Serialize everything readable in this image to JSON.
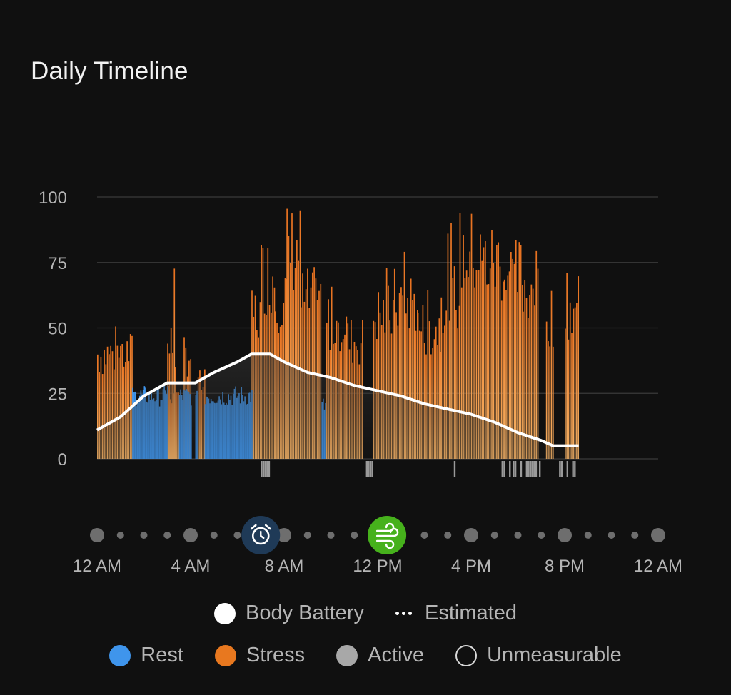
{
  "title": "Daily Timeline",
  "colors": {
    "rest": "#3f95ec",
    "stress_top": "#e8711f",
    "stress_bottom": "#f6b366",
    "active": "#9a9a9a",
    "battery": "#ffffff",
    "grid": "#3a3a3a",
    "background": "#101010"
  },
  "chart_data": {
    "type": "bar",
    "x_unit": "hours since 12 AM",
    "xlim": [
      0,
      24
    ],
    "ylim": [
      0,
      100
    ],
    "y_ticks": [
      0,
      25,
      50,
      75,
      100
    ],
    "x_tick_labels": [
      "12 AM",
      "4 AM",
      "8 AM",
      "12 PM",
      "4 PM",
      "8 PM",
      "12 AM"
    ],
    "series": [
      {
        "name": "Rest",
        "segments": [
          {
            "start": 1.5,
            "end": 2.9,
            "level": 24
          },
          {
            "start": 2.9,
            "end": 3.0,
            "level": 26
          },
          {
            "start": 3.5,
            "end": 4.0,
            "level": 24
          },
          {
            "start": 4.2,
            "end": 4.3,
            "level": 22
          },
          {
            "start": 4.6,
            "end": 6.6,
            "level": 24
          },
          {
            "start": 9.6,
            "end": 9.8,
            "level": 20
          }
        ]
      },
      {
        "name": "Stress",
        "segments": [
          {
            "start": 0.0,
            "end": 1.5,
            "level": 40
          },
          {
            "start": 2.9,
            "end": 3.5,
            "level": 26
          },
          {
            "start": 3.0,
            "end": 3.3,
            "level": 45
          },
          {
            "start": 3.7,
            "end": 4.0,
            "level": 40
          },
          {
            "start": 4.3,
            "end": 4.6,
            "level": 28
          },
          {
            "start": 6.6,
            "end": 7.0,
            "level": 55
          },
          {
            "start": 7.0,
            "end": 7.6,
            "level": 70
          },
          {
            "start": 7.6,
            "end": 8.1,
            "level": 62
          },
          {
            "start": 8.1,
            "end": 8.7,
            "level": 80
          },
          {
            "start": 8.7,
            "end": 9.6,
            "level": 60
          },
          {
            "start": 9.8,
            "end": 10.7,
            "level": 52
          },
          {
            "start": 10.7,
            "end": 11.4,
            "level": 45
          },
          {
            "start": 11.8,
            "end": 12.7,
            "level": 55
          },
          {
            "start": 12.7,
            "end": 13.7,
            "level": 60
          },
          {
            "start": 13.7,
            "end": 14.7,
            "level": 50
          },
          {
            "start": 14.7,
            "end": 15.5,
            "level": 62
          },
          {
            "start": 15.5,
            "end": 16.3,
            "level": 78
          },
          {
            "start": 16.3,
            "end": 17.4,
            "level": 75
          },
          {
            "start": 17.4,
            "end": 18.2,
            "level": 70
          },
          {
            "start": 18.2,
            "end": 18.9,
            "level": 66
          },
          {
            "start": 19.2,
            "end": 19.5,
            "level": 55
          },
          {
            "start": 20.0,
            "end": 20.6,
            "level": 58
          }
        ]
      },
      {
        "name": "Active",
        "segments": [
          {
            "start": 7.0,
            "end": 7.4,
            "level": 6
          },
          {
            "start": 11.5,
            "end": 11.8,
            "level": 6
          },
          {
            "start": 15.1,
            "end": 15.3,
            "level": 6
          },
          {
            "start": 17.3,
            "end": 18.9,
            "level": 6
          },
          {
            "start": 19.6,
            "end": 20.4,
            "level": 6
          }
        ]
      },
      {
        "name": "Body Battery",
        "points": [
          [
            0.0,
            11
          ],
          [
            1.0,
            16
          ],
          [
            2.0,
            24
          ],
          [
            3.0,
            29
          ],
          [
            4.2,
            29
          ],
          [
            5.0,
            33
          ],
          [
            6.0,
            37
          ],
          [
            6.6,
            40
          ],
          [
            7.4,
            40
          ],
          [
            8.0,
            37
          ],
          [
            9.0,
            33
          ],
          [
            10.0,
            31
          ],
          [
            11.0,
            28
          ],
          [
            12.0,
            26
          ],
          [
            13.0,
            24
          ],
          [
            14.0,
            21
          ],
          [
            15.0,
            19
          ],
          [
            16.0,
            17
          ],
          [
            17.0,
            14
          ],
          [
            18.0,
            10
          ],
          [
            19.0,
            7
          ],
          [
            19.5,
            5
          ],
          [
            20.6,
            5
          ]
        ]
      }
    ],
    "legend_placement": "bottom"
  },
  "timeline": {
    "alarm_icon": "alarm-clock-icon",
    "alarm_time": 7.0,
    "breathing_icon": "wind-icon",
    "breathing_time": 12.4
  },
  "legend": {
    "body_battery": "Body Battery",
    "estimated": "Estimated",
    "rest": "Rest",
    "stress": "Stress",
    "active": "Active",
    "unmeasurable": "Unmeasurable"
  }
}
